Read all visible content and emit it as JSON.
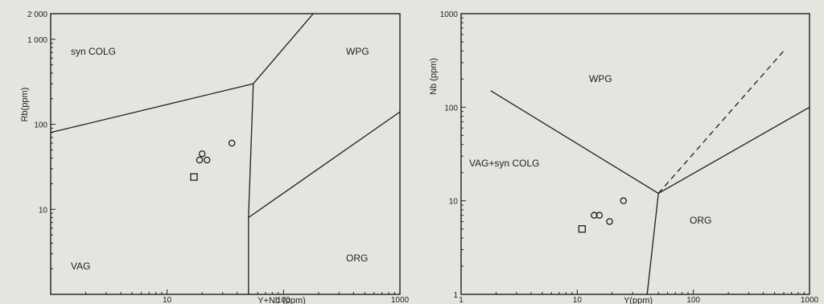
{
  "chart_data": [
    {
      "type": "scatter",
      "xscale": "log",
      "yscale": "log",
      "xlim": [
        1,
        1000
      ],
      "ylim": [
        1,
        2000
      ],
      "xlabel": "Y+Nb (ppm)",
      "ylabel": "Rb(ppm)",
      "xticks": [
        "10",
        "100",
        "1000"
      ],
      "yticks": [
        "10",
        "100",
        "1 000",
        "2 000"
      ],
      "field_labels": [
        "syn COLG",
        "WPG",
        "VAG",
        "ORG"
      ],
      "boundaries": [
        {
          "style": "solid",
          "x": [
            1,
            55
          ],
          "y": [
            80,
            300
          ]
        },
        {
          "style": "solid",
          "x": [
            55,
            180
          ],
          "y": [
            300,
            2000
          ]
        },
        {
          "style": "solid",
          "x": [
            55,
            50
          ],
          "y": [
            300,
            8
          ]
        },
        {
          "style": "solid",
          "x": [
            50,
            1000
          ],
          "y": [
            8,
            140
          ]
        },
        {
          "style": "solid",
          "x": [
            50,
            50
          ],
          "y": [
            8,
            1
          ]
        }
      ],
      "points": [
        {
          "marker": "circle",
          "x": 36,
          "y": 60
        },
        {
          "marker": "circle",
          "x": 20,
          "y": 45
        },
        {
          "marker": "circle",
          "x": 19,
          "y": 38
        },
        {
          "marker": "circle",
          "x": 22,
          "y": 38
        },
        {
          "marker": "square",
          "x": 17,
          "y": 24
        }
      ]
    },
    {
      "type": "scatter",
      "xscale": "log",
      "yscale": "log",
      "xlim": [
        1,
        1000
      ],
      "ylim": [
        1,
        1000
      ],
      "xlabel": "Y(ppm)",
      "ylabel": "Nb (ppm)",
      "xticks": [
        "1",
        "10",
        "100",
        "1000"
      ],
      "yticks": [
        "1",
        "10",
        "100",
        "1000"
      ],
      "field_labels": [
        "WPG",
        "VAG+syn COLG",
        "ORG"
      ],
      "boundaries": [
        {
          "style": "solid",
          "x": [
            1.8,
            50
          ],
          "y": [
            150,
            12
          ]
        },
        {
          "style": "solid",
          "x": [
            50,
            1000
          ],
          "y": [
            12,
            100
          ]
        },
        {
          "style": "solid",
          "x": [
            50,
            40
          ],
          "y": [
            12,
            1
          ]
        },
        {
          "style": "dashed",
          "x": [
            50,
            600
          ],
          "y": [
            12,
            400
          ]
        }
      ],
      "points": [
        {
          "marker": "circle",
          "x": 25,
          "y": 10
        },
        {
          "marker": "circle",
          "x": 14,
          "y": 7
        },
        {
          "marker": "circle",
          "x": 15.5,
          "y": 7
        },
        {
          "marker": "circle",
          "x": 19,
          "y": 6
        },
        {
          "marker": "square",
          "x": 11,
          "y": 5
        }
      ]
    }
  ]
}
